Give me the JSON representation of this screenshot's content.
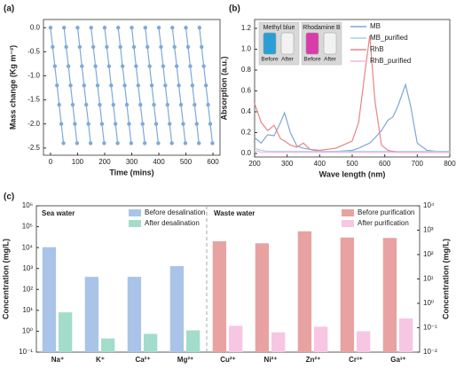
{
  "chart_data": [
    {
      "type": "line",
      "panel_label": "(a)",
      "markers": true,
      "x_label": "Time (mins)",
      "y_label": "Mass change (Kg m⁻²)",
      "x": [
        0,
        8,
        16,
        24,
        32,
        40,
        48,
        49,
        50,
        58,
        66,
        74,
        82,
        90,
        98,
        99,
        100,
        108,
        116,
        124,
        132,
        140,
        148,
        149,
        150,
        158,
        166,
        174,
        182,
        190,
        198,
        199,
        200,
        208,
        216,
        224,
        232,
        240,
        248,
        249,
        250,
        258,
        266,
        274,
        282,
        290,
        298,
        299,
        300,
        308,
        316,
        324,
        332,
        340,
        348,
        349,
        350,
        358,
        366,
        374,
        382,
        390,
        398,
        399,
        400,
        408,
        416,
        424,
        432,
        440,
        448,
        449,
        450,
        458,
        466,
        474,
        482,
        490,
        498,
        499,
        500,
        508,
        516,
        524,
        532,
        540,
        548,
        549,
        550,
        558,
        566,
        574,
        582,
        590,
        598
      ],
      "series": [
        {
          "color": "#7fa9d9",
          "values": [
            0,
            -0.4,
            -0.8,
            -1.2,
            -1.6,
            -2,
            -2.4,
            null,
            0,
            -0.4,
            -0.8,
            -1.2,
            -1.6,
            -2,
            -2.4,
            null,
            0,
            -0.4,
            -0.8,
            -1.2,
            -1.6,
            -2,
            -2.4,
            null,
            0,
            -0.4,
            -0.8,
            -1.2,
            -1.6,
            -2,
            -2.4,
            null,
            0,
            -0.4,
            -0.8,
            -1.2,
            -1.6,
            -2,
            -2.4,
            null,
            0,
            -0.4,
            -0.8,
            -1.2,
            -1.6,
            -2,
            -2.4,
            null,
            0,
            -0.4,
            -0.8,
            -1.2,
            -1.6,
            -2,
            -2.4,
            null,
            0,
            -0.4,
            -0.8,
            -1.2,
            -1.6,
            -2,
            -2.4,
            null,
            0,
            -0.4,
            -0.8,
            -1.2,
            -1.6,
            -2,
            -2.4,
            null,
            0,
            -0.4,
            -0.8,
            -1.2,
            -1.6,
            -2,
            -2.4,
            null,
            0,
            -0.4,
            -0.8,
            -1.2,
            -1.6,
            -2,
            -2.4,
            null,
            0,
            -0.4,
            -0.8,
            -1.2,
            -1.6,
            -2,
            -2.4
          ]
        }
      ],
      "xlim": [
        -26,
        626
      ],
      "xticks": [
        0,
        100,
        200,
        300,
        400,
        500,
        600
      ],
      "ylim": [
        -2.65,
        0.17
      ],
      "yticks": [
        {
          "value": 0,
          "label": "0.0"
        },
        {
          "value": -0.5,
          "label": "-0.5"
        },
        {
          "value": -1,
          "label": "-1.0"
        },
        {
          "value": -1.5,
          "label": "-1.5"
        },
        {
          "value": -2,
          "label": "-2.0"
        },
        {
          "value": -2.5,
          "label": "-2.5"
        }
      ]
    },
    {
      "type": "line",
      "panel_label": "(b)",
      "markers": false,
      "x_label": "Wave length (nm)",
      "y_label": "Absorption (a.u.)",
      "inset_titles": [
        "Methyl blue",
        "Rhodamine B"
      ],
      "inset_captions": [
        "Before",
        "After",
        "Before",
        "After"
      ],
      "x": [
        200,
        220,
        240,
        260,
        280,
        292,
        310,
        330,
        350,
        370,
        400,
        450,
        500,
        520,
        540,
        554,
        570,
        590,
        610,
        625,
        640,
        664,
        680,
        700,
        730,
        760,
        800
      ],
      "series": [
        {
          "name": "MB",
          "color": "#7ea6d6",
          "values": [
            0.15,
            0.1,
            0.18,
            0.17,
            0.3,
            0.39,
            0.2,
            0.07,
            0.05,
            0.04,
            0.02,
            0.02,
            0.03,
            0.05,
            0.08,
            0.1,
            0.15,
            0.22,
            0.32,
            0.35,
            0.45,
            0.66,
            0.45,
            0.1,
            0.03,
            0.02,
            0.02
          ]
        },
        {
          "name": "MB_purified",
          "color": "#a9cdee",
          "values": [
            0.05,
            0.03,
            0.02,
            0.02,
            0.02,
            0.02,
            0.02,
            0.02,
            0.02,
            0.02,
            0.02,
            0.02,
            0.02,
            0.02,
            0.02,
            0.02,
            0.02,
            0.02,
            0.02,
            0.02,
            0.02,
            0.02,
            0.02,
            0.02,
            0.02,
            0.02,
            0.02
          ]
        },
        {
          "name": "RhB",
          "color": "#e88585",
          "values": [
            0.48,
            0.3,
            0.22,
            0.27,
            0.14,
            0.12,
            0.08,
            0.06,
            0.1,
            0.04,
            0.03,
            0.05,
            0.12,
            0.3,
            0.8,
            1.13,
            0.5,
            0.08,
            0.03,
            0.02,
            0.01,
            0.01,
            0.01,
            0.01,
            0.01,
            0.01,
            0.01
          ]
        },
        {
          "name": "RhB_purified",
          "color": "#f7b7dc",
          "values": [
            0.03,
            0.01,
            0.01,
            0.01,
            0.01,
            0.01,
            0.01,
            0.01,
            0.01,
            0.01,
            0.01,
            0.01,
            0.01,
            0.01,
            0.01,
            0.01,
            0.01,
            0.01,
            0.01,
            0.01,
            0.01,
            0.01,
            0.01,
            0.01,
            0.01,
            0.01,
            0.01
          ]
        }
      ],
      "xlim": [
        200,
        800
      ],
      "xticks": [
        200,
        300,
        400,
        500,
        600,
        700,
        800
      ],
      "ylim": [
        -0.034,
        1.285
      ],
      "yticks": [
        {
          "value": 0,
          "label": "0.0"
        },
        {
          "value": 0.2,
          "label": "0.2"
        },
        {
          "value": 0.4,
          "label": "0.4"
        },
        {
          "value": 0.6,
          "label": "0.6"
        },
        {
          "value": 0.8,
          "label": "0.8"
        },
        {
          "value": 1,
          "label": "1.0"
        },
        {
          "value": 1.2,
          "label": "1.2"
        }
      ]
    },
    {
      "type": "bar",
      "panel_label": "(c)",
      "log_scale": true,
      "y_label": "Concentration (mg/L)",
      "y2_label": "Concentration (mg/L)",
      "group_labels": [
        "Sea water",
        "Waste water"
      ],
      "categories": [
        "Na⁺",
        "K⁺",
        "Ca²⁺",
        "Mg²⁺",
        "Cu²⁺",
        "Ni²⁺",
        "Zn²⁺",
        "Cr³⁺",
        "Ga³⁺"
      ],
      "series": [
        {
          "name": "Before desalination",
          "color": "#a9c4e8",
          "values": [
            10500,
            400,
            400,
            1300,
            null,
            null,
            null,
            null,
            null
          ]
        },
        {
          "name": "After desalination",
          "color": "#a3dccb",
          "values": [
            8,
            0.45,
            0.75,
            1.1,
            null,
            null,
            null,
            null,
            null
          ]
        },
        {
          "name": "Before purification",
          "color": "#e8a2a2",
          "axis": "y2",
          "values": [
            null,
            null,
            null,
            null,
            350,
            290,
            900,
            500,
            480
          ]
        },
        {
          "name": "After purification",
          "color": "#f7c6e3",
          "axis": "y2",
          "values": [
            null,
            null,
            null,
            null,
            0.12,
            0.065,
            0.11,
            0.072,
            0.24
          ]
        }
      ],
      "ylim": [
        0.1,
        1000000
      ],
      "yticks": [
        {
          "value": 0.1,
          "label": "10⁻¹"
        },
        {
          "value": 1,
          "label": "10⁰"
        },
        {
          "value": 10,
          "label": "10¹"
        },
        {
          "value": 100,
          "label": "10²"
        },
        {
          "value": 1000,
          "label": "10³"
        },
        {
          "value": 10000,
          "label": "10⁴"
        },
        {
          "value": 100000,
          "label": "10⁵"
        },
        {
          "value": 1000000,
          "label": "10⁶"
        }
      ],
      "y2lim": [
        0.01,
        10000
      ],
      "y2ticks": [
        {
          "value": 0.01,
          "label": "10⁻²"
        },
        {
          "value": 0.1,
          "label": "10⁻¹"
        },
        {
          "value": 1,
          "label": "10⁰"
        },
        {
          "value": 10,
          "label": "10¹"
        },
        {
          "value": 100,
          "label": "10²"
        },
        {
          "value": 1000,
          "label": "10³"
        },
        {
          "value": 10000,
          "label": "10⁴"
        }
      ]
    }
  ]
}
